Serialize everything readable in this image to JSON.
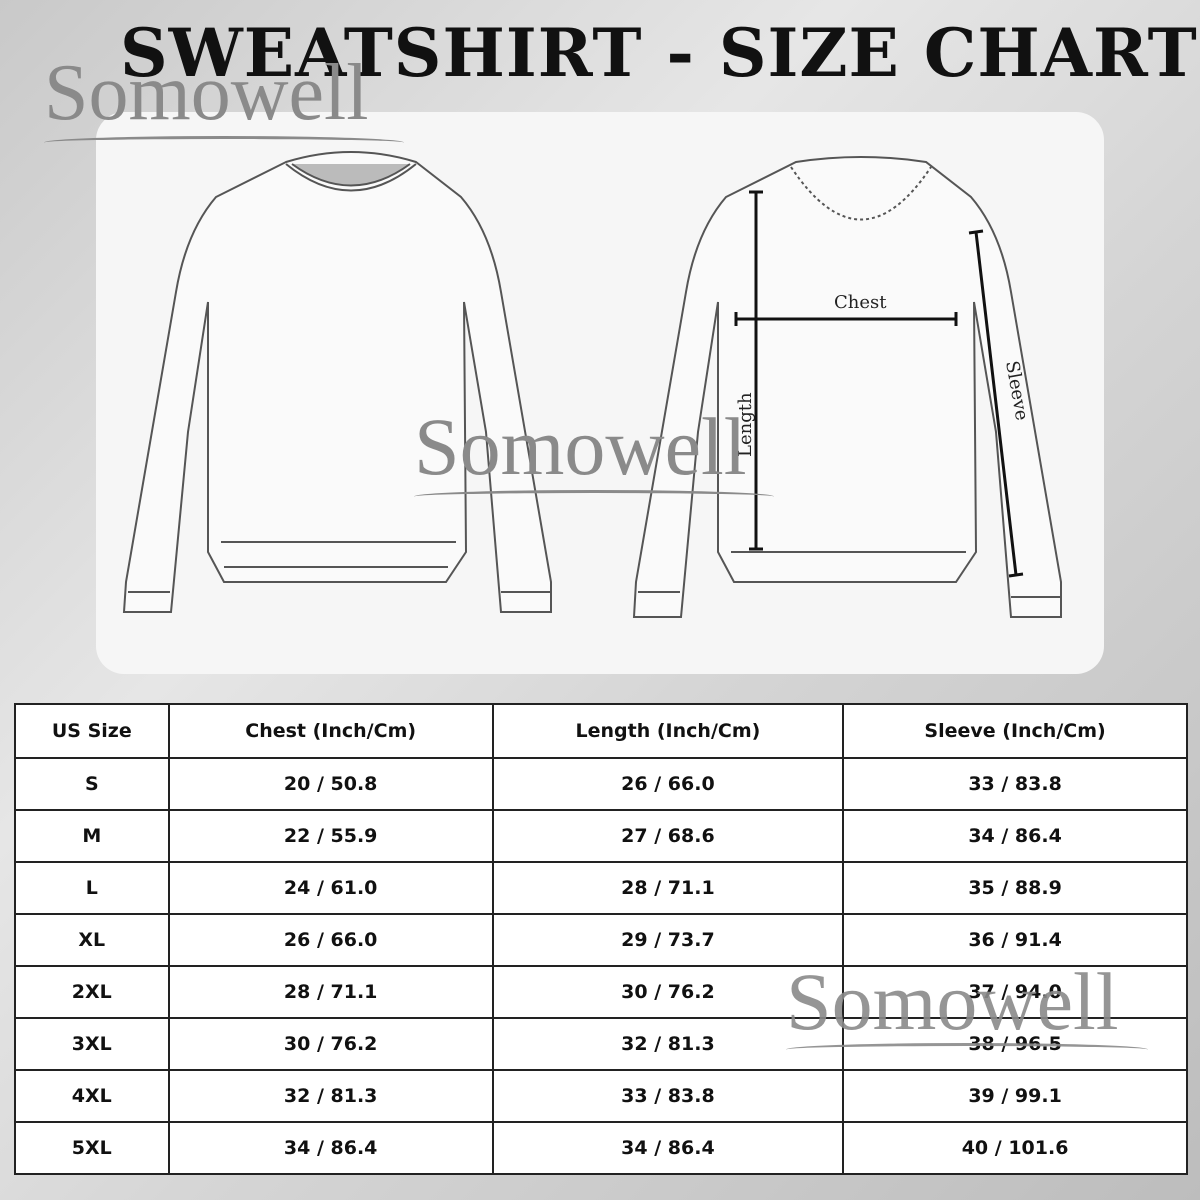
{
  "title": "SWEATSHIRT -  SIZE CHART",
  "brand": "Somowell",
  "diagram_labels": {
    "chest": "Chest",
    "length": "Length",
    "sleeve": "Sleeve"
  },
  "table": {
    "headers": [
      "US Size",
      "Chest (Inch/Cm)",
      "Length (Inch/Cm)",
      "Sleeve (Inch/Cm)"
    ],
    "rows": [
      [
        "S",
        "20 / 50.8",
        "26 / 66.0",
        "33 / 83.8"
      ],
      [
        "M",
        "22 / 55.9",
        "27 / 68.6",
        "34 / 86.4"
      ],
      [
        "L",
        "24 / 61.0",
        "28 / 71.1",
        "35 / 88.9"
      ],
      [
        "XL",
        "26 / 66.0",
        "29 / 73.7",
        "36 / 91.4"
      ],
      [
        "2XL",
        "28 / 71.1",
        "30 / 76.2",
        "37 / 94.0"
      ],
      [
        "3XL",
        "30 / 76.2",
        "32 / 81.3",
        "38 / 96.5"
      ],
      [
        "4XL",
        "32 / 81.3",
        "33 / 83.8",
        "39 / 99.1"
      ],
      [
        "5XL",
        "34 / 86.4",
        "34 / 86.4",
        "40 / 101.6"
      ]
    ]
  }
}
